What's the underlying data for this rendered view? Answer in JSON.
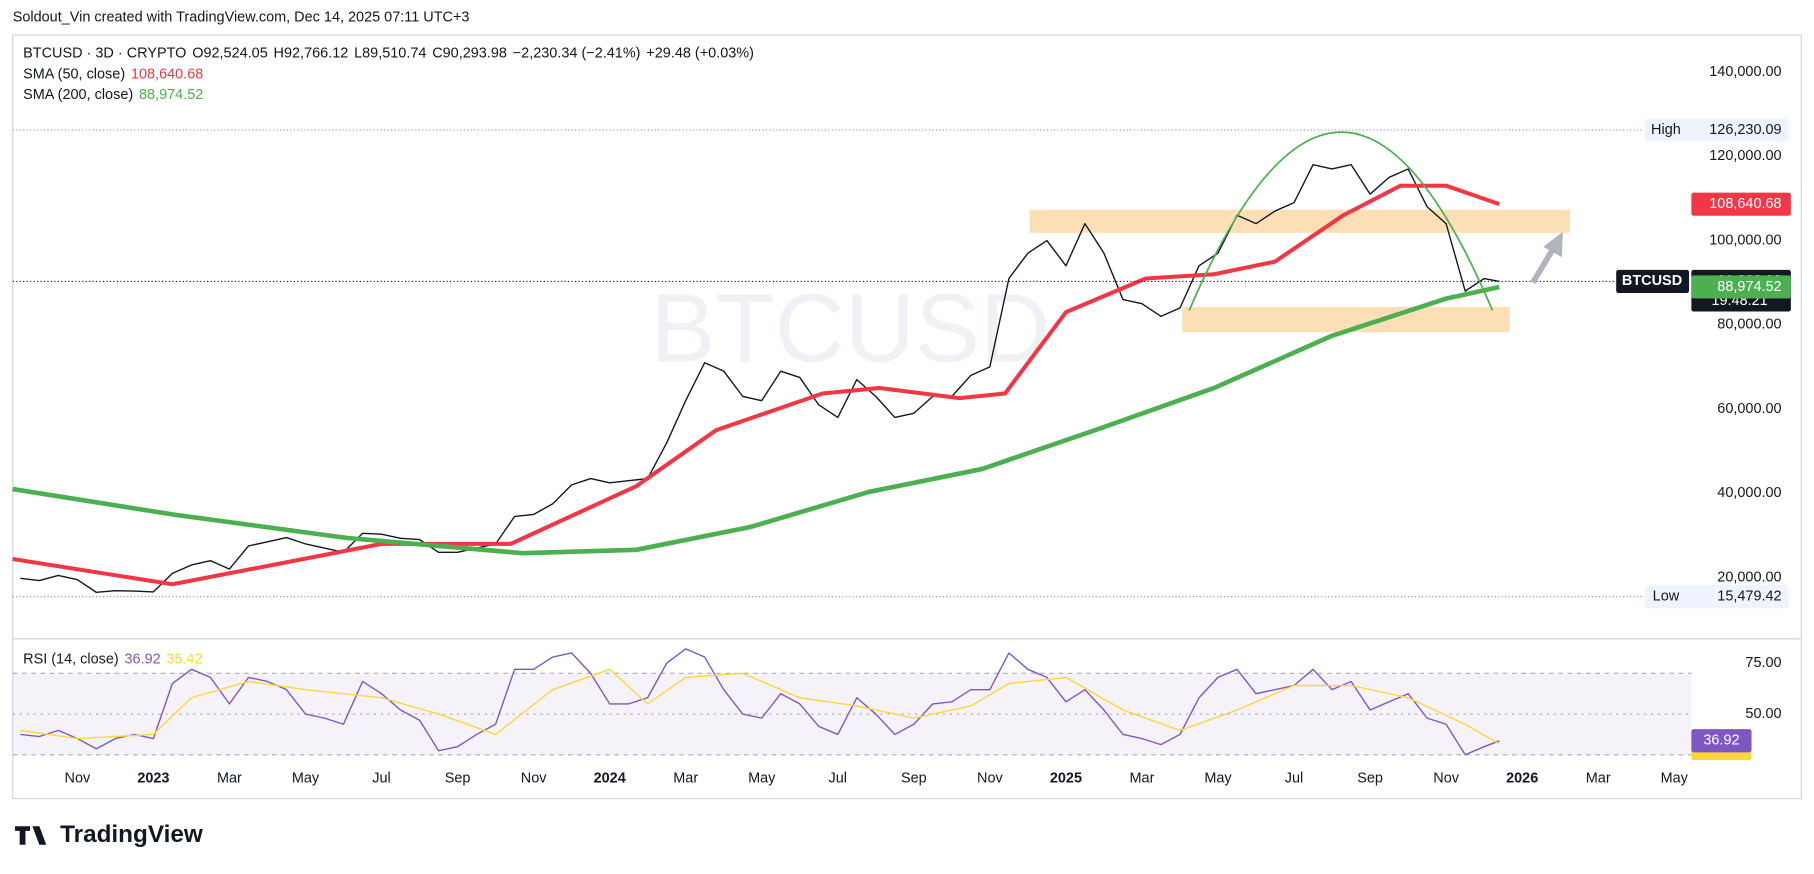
{
  "header": "Soldout_Vin created with TradingView.com, Dec 14, 2025 07:11 UTC+3",
  "logo": "TradingView",
  "chart_data": [
    {
      "type": "line",
      "symbol": "BTCUSD · 3D · CRYPTO",
      "ohlc": [
        "O92,524.05",
        "H92,766.12",
        "L89,510.74",
        "C90,293.98",
        "−2,230.34 (−2.41%)",
        "+29.48 (+0.03%)"
      ],
      "watermark": "BTCUSD",
      "xlim": [
        8.3,
        52.45
      ],
      "ylim": [
        5450,
        148790
      ],
      "yticks": [
        {
          "value": 20000,
          "label": "20,000.00"
        },
        {
          "value": 40000,
          "label": "40,000.00"
        },
        {
          "value": 60000,
          "label": "60,000.00"
        },
        {
          "value": 80000,
          "label": "80,000.00"
        },
        {
          "value": 100000,
          "label": "100,000.00"
        },
        {
          "value": 120000,
          "label": "120,000.00"
        },
        {
          "value": 140000,
          "label": "140,000.00"
        }
      ],
      "grid": false,
      "series": [
        {
          "name": "BTCUSD",
          "color": "#131722",
          "x": [
            8.5,
            9,
            9.5,
            10,
            10.5,
            11,
            11.5,
            12,
            12.5,
            13,
            13.5,
            14,
            14.5,
            15,
            15.5,
            16,
            16.5,
            17,
            17.5,
            18,
            18.5,
            19,
            19.5,
            20,
            20.5,
            21,
            21.5,
            22,
            22.5,
            23,
            23.5,
            24,
            24.5,
            25,
            25.5,
            26,
            26.5,
            27,
            27.5,
            28,
            28.5,
            29,
            29.5,
            30,
            30.5,
            31,
            31.5,
            32,
            32.5,
            33,
            33.5,
            34,
            34.5,
            35,
            35.5,
            36,
            36.5,
            37,
            37.5,
            38,
            38.5,
            39,
            39.5,
            40,
            40.5,
            41,
            41.5,
            42,
            42.5,
            43,
            43.5,
            44,
            44.5,
            45,
            45.5,
            46,
            46.5,
            47,
            47.4
          ],
          "values": [
            19800,
            19300,
            20500,
            19500,
            16500,
            16900,
            16800,
            16600,
            21000,
            23000,
            24000,
            22000,
            27500,
            28500,
            29500,
            28000,
            27000,
            26000,
            30500,
            30300,
            29300,
            29000,
            26000,
            26000,
            27000,
            28000,
            34500,
            35000,
            37500,
            42000,
            43500,
            42500,
            43000,
            43500,
            52000,
            62000,
            71000,
            69000,
            63000,
            62000,
            69000,
            67500,
            61000,
            58000,
            67000,
            63000,
            58000,
            59000,
            63000,
            63000,
            68000,
            70000,
            91000,
            97000,
            100000,
            94000,
            104000,
            97000,
            86000,
            85000,
            82000,
            84000,
            94000,
            97000,
            106000,
            104000,
            107000,
            109000,
            118000,
            117000,
            118000,
            111000,
            115000,
            117000,
            108000,
            104000,
            88000,
            91000,
            90293.98
          ],
          "last": {
            "value": 90293.98,
            "label": "90,293.98"
          },
          "countdown": "19:48:21"
        },
        {
          "name": "SMA (50, close)",
          "color": "#f23645",
          "x": [
            8.3,
            12.5,
            18,
            21.4,
            24.7,
            26.8,
            29.6,
            31.1,
            33.2,
            34.4,
            36,
            38.1,
            39.9,
            41.5,
            43.3,
            44.8,
            46,
            47.4
          ],
          "values": [
            24400,
            18400,
            28000,
            28000,
            41700,
            55000,
            63700,
            65000,
            62600,
            63700,
            83000,
            91000,
            92000,
            95000,
            106000,
            113000,
            113000,
            108640.68
          ],
          "last": {
            "value": 108640.68,
            "label": "108,640.68"
          }
        },
        {
          "name": "SMA (200, close)",
          "color": "#4caf50",
          "x": [
            8.3,
            12.5,
            17.1,
            21.7,
            24.7,
            27.7,
            30.8,
            33.8,
            36.9,
            39.9,
            43,
            46,
            47.4
          ],
          "values": [
            41000,
            35000,
            29400,
            25800,
            26600,
            32000,
            40300,
            45800,
            55400,
            65000,
            77400,
            86200,
            88974.52
          ],
          "last": {
            "value": 88974.52,
            "label": "88,974.52"
          }
        }
      ],
      "high": {
        "name": "High",
        "value": 126230.09,
        "label": "126,230.09"
      },
      "low": {
        "name": "Low",
        "value": 15479.42,
        "label": "15,479.42"
      }
    },
    {
      "type": "line",
      "title": "RSI (14, close)",
      "xlim": [
        8.3,
        52.45
      ],
      "ylim": [
        25.6,
        86.9
      ],
      "yticks": [
        {
          "value": 50,
          "label": "50.00"
        },
        {
          "value": 75,
          "label": "75.00"
        }
      ],
      "levels": [
        30,
        50,
        70
      ],
      "xticks": [
        {
          "value": 10,
          "label": "Nov"
        },
        {
          "value": 12,
          "label": "2023"
        },
        {
          "value": 14,
          "label": "Mar"
        },
        {
          "value": 16,
          "label": "May"
        },
        {
          "value": 18,
          "label": "Jul"
        },
        {
          "value": 20,
          "label": "Sep"
        },
        {
          "value": 22,
          "label": "Nov"
        },
        {
          "value": 24,
          "label": "2024"
        },
        {
          "value": 26,
          "label": "Mar"
        },
        {
          "value": 28,
          "label": "May"
        },
        {
          "value": 30,
          "label": "Jul"
        },
        {
          "value": 32,
          "label": "Sep"
        },
        {
          "value": 34,
          "label": "Nov"
        },
        {
          "value": 36,
          "label": "2025"
        },
        {
          "value": 38,
          "label": "Mar"
        },
        {
          "value": 40,
          "label": "May"
        },
        {
          "value": 42,
          "label": "Jul"
        },
        {
          "value": 44,
          "label": "Sep"
        },
        {
          "value": 46,
          "label": "Nov"
        },
        {
          "value": 48,
          "label": "2026"
        },
        {
          "value": 50,
          "label": "Mar"
        },
        {
          "value": 52,
          "label": "May"
        }
      ],
      "series": [
        {
          "color": "#7e57c2",
          "x": [
            8.5,
            9,
            9.5,
            10,
            10.5,
            11,
            11.5,
            12,
            12.5,
            13,
            13.5,
            14,
            14.5,
            15,
            15.5,
            16,
            16.5,
            17,
            17.5,
            18,
            18.5,
            19,
            19.5,
            20,
            20.5,
            21,
            21.5,
            22,
            22.5,
            23,
            23.5,
            24,
            24.5,
            25,
            25.5,
            26,
            26.5,
            27,
            27.5,
            28,
            28.5,
            29,
            29.5,
            30,
            30.5,
            31,
            31.5,
            32,
            32.5,
            33,
            33.5,
            34,
            34.5,
            35,
            35.5,
            36,
            36.5,
            37,
            37.5,
            38,
            38.5,
            39,
            39.5,
            40,
            40.5,
            41,
            41.5,
            42,
            42.5,
            43,
            43.5,
            44,
            44.5,
            45,
            45.5,
            46,
            46.5,
            47,
            47.4
          ],
          "values": [
            40,
            39,
            42,
            38,
            33,
            38,
            40,
            38,
            65,
            72,
            68,
            55,
            68,
            66,
            62,
            50,
            48,
            45,
            66,
            60,
            52,
            47,
            32,
            34,
            40,
            45,
            72,
            72,
            78,
            80,
            70,
            55,
            55,
            58,
            75,
            82,
            78,
            62,
            50,
            48,
            60,
            55,
            44,
            40,
            58,
            50,
            40,
            45,
            55,
            56,
            62,
            62,
            80,
            72,
            68,
            56,
            62,
            52,
            40,
            38,
            35,
            40,
            58,
            68,
            72,
            60,
            62,
            64,
            72,
            62,
            66,
            52,
            56,
            60,
            48,
            45,
            30,
            34,
            36.92
          ],
          "last": {
            "value": 36.92,
            "label": "36.92"
          }
        },
        {
          "color": "#fdd835",
          "x": [
            8.5,
            10,
            12,
            13,
            14.5,
            16,
            18,
            19.5,
            21,
            22.5,
            24,
            25,
            26,
            27.5,
            29,
            30.5,
            32,
            33.5,
            34.5,
            36,
            37.5,
            39,
            40.5,
            42,
            43.5,
            45,
            46.5,
            47.4
          ],
          "values": [
            42,
            38,
            40,
            58,
            66,
            62,
            58,
            50,
            40,
            62,
            72,
            55,
            68,
            70,
            58,
            54,
            48,
            54,
            65,
            68,
            52,
            42,
            52,
            64,
            64,
            58,
            45,
            35.42
          ],
          "last": {
            "value": 35.42,
            "label": "35.42"
          }
        }
      ]
    }
  ]
}
